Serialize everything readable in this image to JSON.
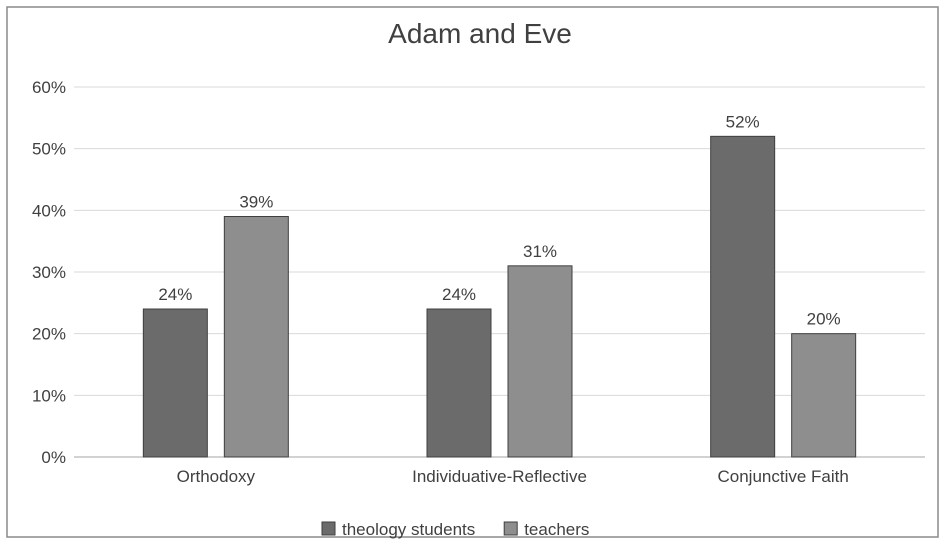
{
  "chart_data": {
    "type": "bar",
    "title": "Adam and Eve",
    "xlabel": "",
    "ylabel": "",
    "categories": [
      "Orthodoxy",
      "Individuative-Reflective",
      "Conjunctive Faith"
    ],
    "series": [
      {
        "name": "theology students",
        "values": [
          24,
          24,
          52
        ],
        "labels": [
          "24%",
          "24%",
          "52%"
        ],
        "color": "#6b6b6b"
      },
      {
        "name": "teachers",
        "values": [
          39,
          31,
          20
        ],
        "labels": [
          "39%",
          "31%",
          "20%"
        ],
        "color": "#8e8e8e"
      }
    ],
    "ylim": [
      0,
      60
    ],
    "yticks": [
      0,
      10,
      20,
      30,
      40,
      50,
      60
    ],
    "ytick_labels": [
      "0%",
      "10%",
      "20%",
      "30%",
      "40%",
      "50%",
      "60%"
    ],
    "grid": true,
    "legend": "bottom"
  }
}
